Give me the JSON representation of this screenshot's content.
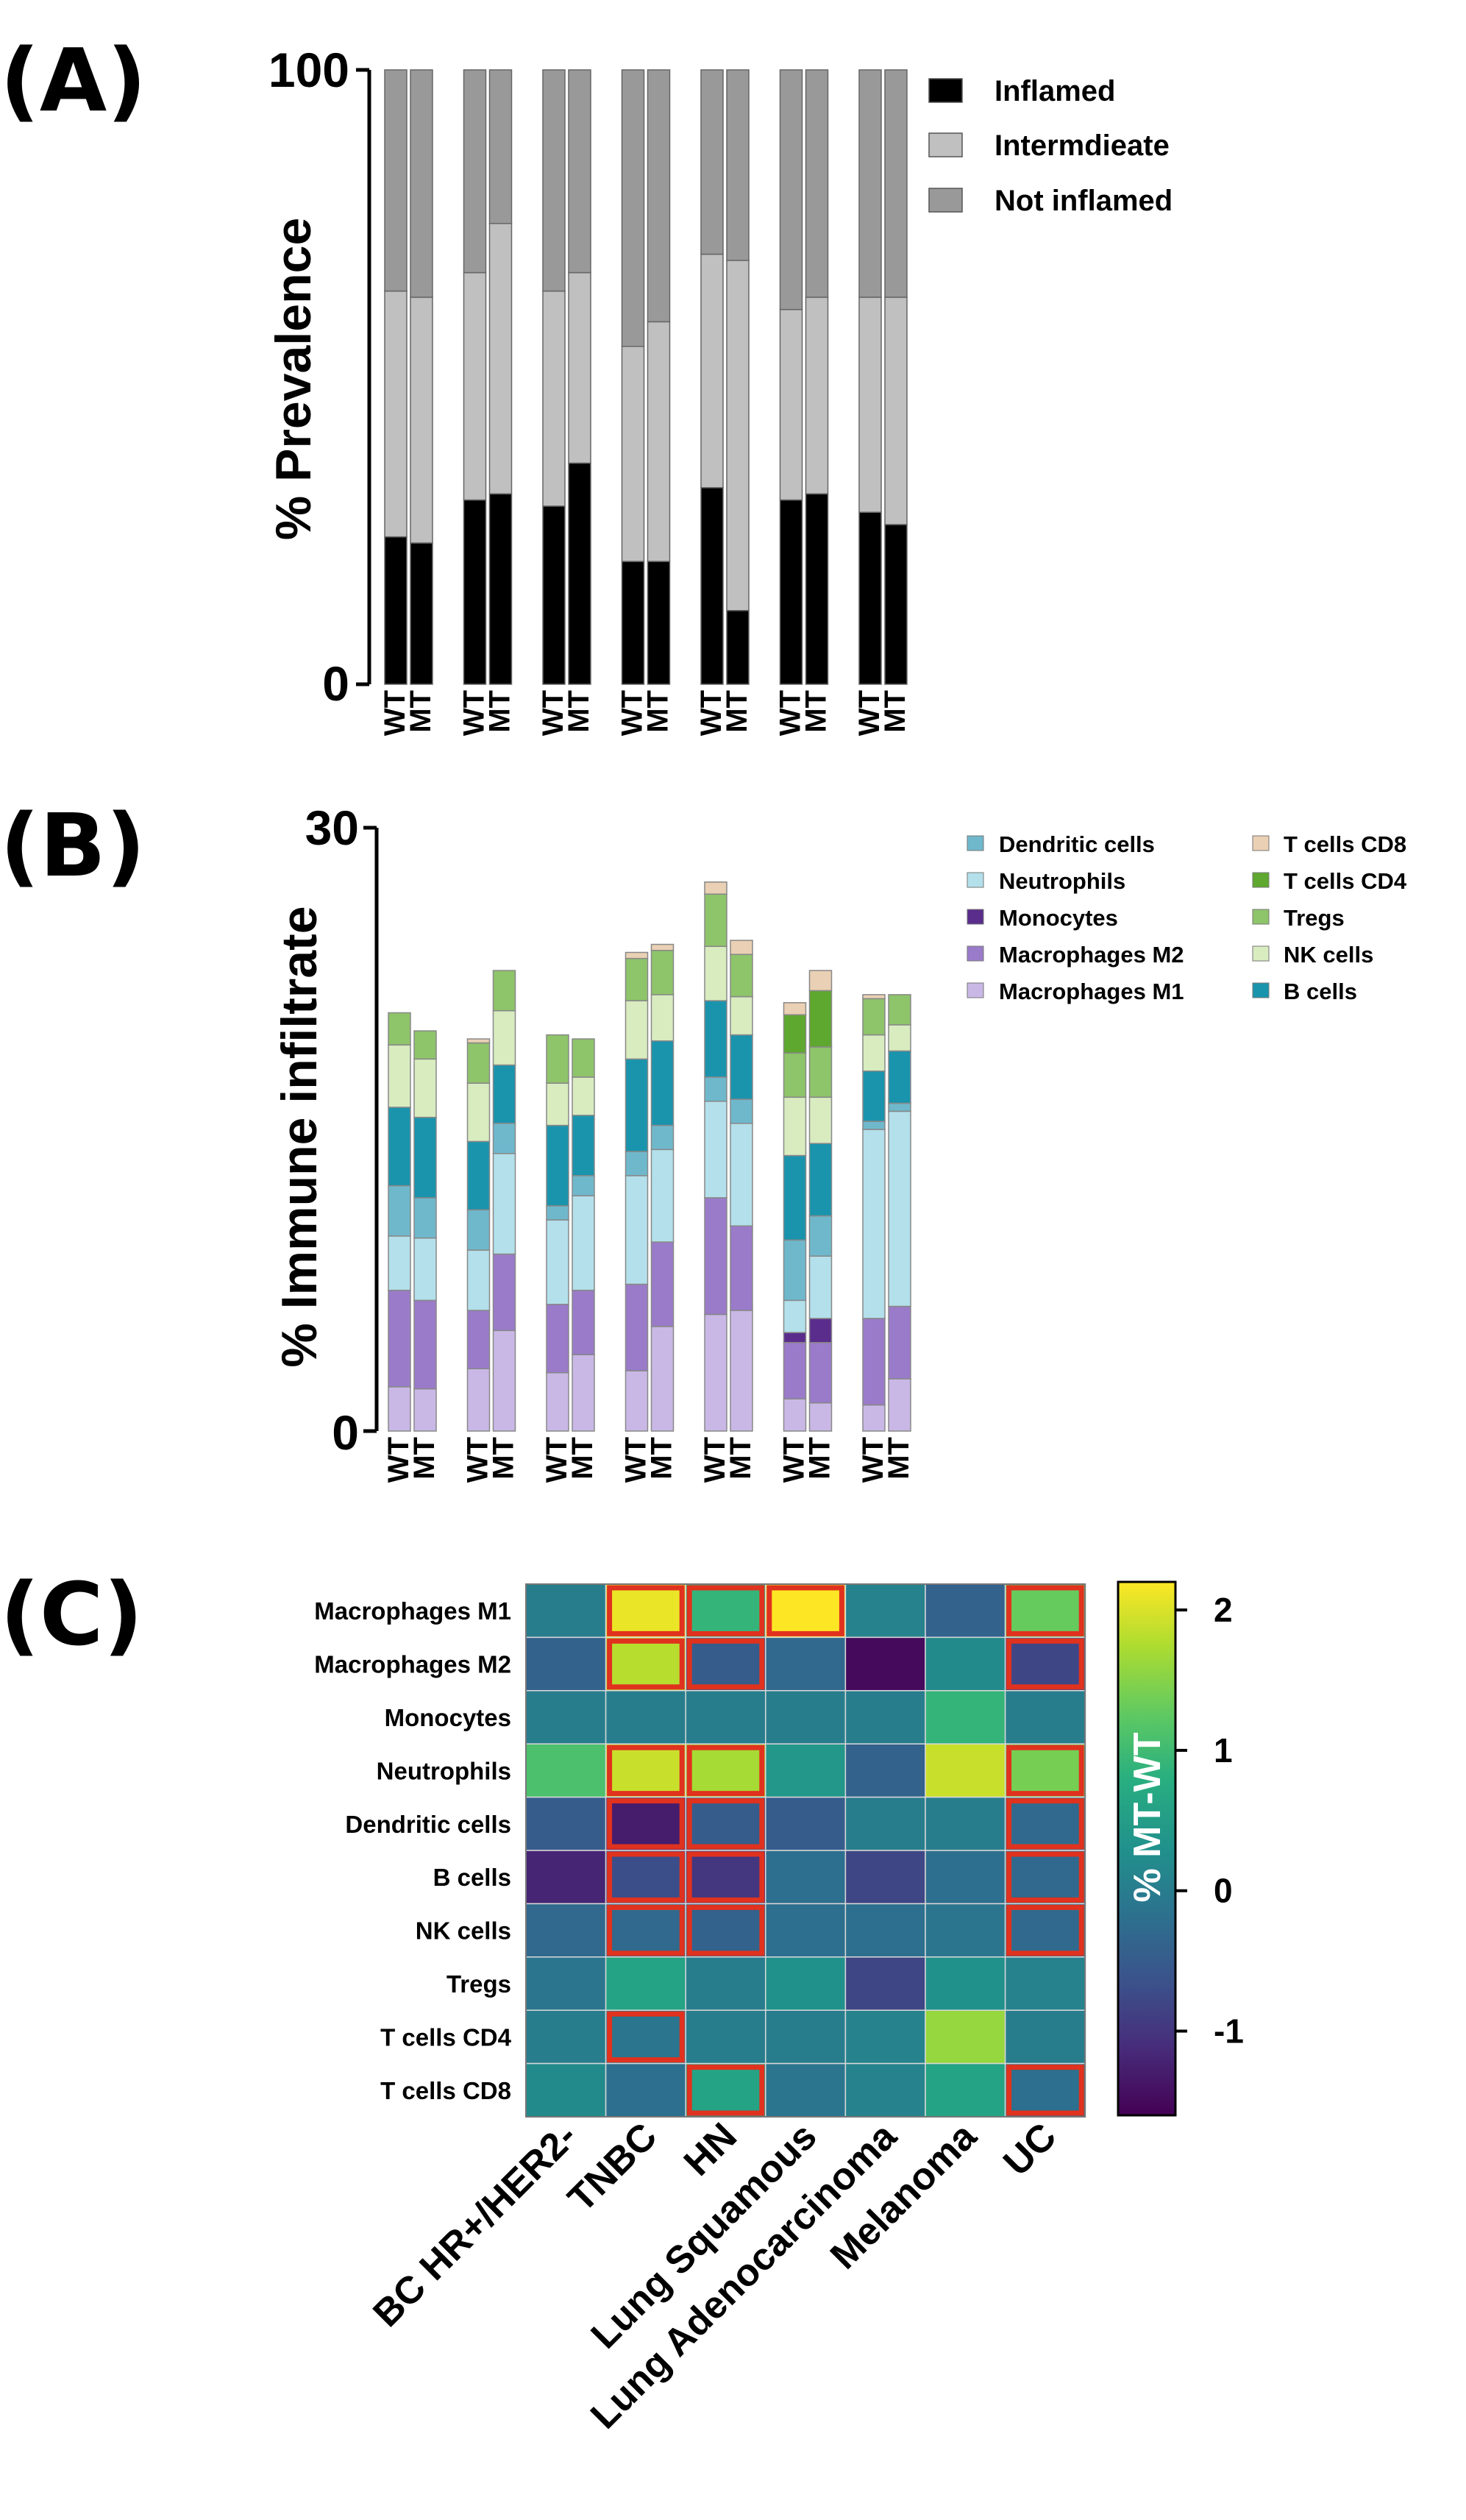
{
  "panels": {
    "a_label": "(A)",
    "b_label": "(B)",
    "c_label": "(C)"
  },
  "chart_data": [
    {
      "type": "bar",
      "stacked": true,
      "panel": "A",
      "ylabel": "% Prevalence",
      "ylim": [
        0,
        100
      ],
      "yticks": [
        "0",
        "100"
      ],
      "group_count": 7,
      "categories": [
        "WT",
        "MT",
        "WT",
        "MT",
        "WT",
        "MT",
        "WT",
        "MT",
        "WT",
        "MT",
        "WT",
        "MT",
        "WT",
        "MT"
      ],
      "series": [
        {
          "name": "Inflamed",
          "color": "#000000",
          "values": [
            24,
            23,
            30,
            31,
            29,
            36,
            20,
            20,
            32,
            12,
            30,
            31,
            28,
            26
          ]
        },
        {
          "name": "Intermdieate",
          "color": "#c0c0c0",
          "values": [
            40,
            40,
            37,
            44,
            35,
            31,
            35,
            39,
            38,
            57,
            31,
            32,
            35,
            37
          ]
        },
        {
          "name": "Not inflamed",
          "color": "#999999",
          "values": [
            36,
            37,
            33,
            25,
            36,
            33,
            45,
            41,
            30,
            31,
            39,
            37,
            37,
            37
          ]
        }
      ],
      "legend_position": "top-right",
      "grid": false
    },
    {
      "type": "bar",
      "stacked": true,
      "panel": "B",
      "ylabel": "% Immune infiltrate",
      "ylim": [
        0,
        30
      ],
      "yticks": [
        "0",
        "30"
      ],
      "group_count": 7,
      "categories": [
        "WT",
        "MT",
        "WT",
        "MT",
        "WT",
        "MT",
        "WT",
        "MT",
        "WT",
        "MT",
        "WT",
        "MT",
        "WT",
        "MT"
      ],
      "series": [
        {
          "name": "Macrophages M1",
          "color": "#c9b8e6",
          "values": [
            2.2,
            2.1,
            3.1,
            5.0,
            2.9,
            3.8,
            3.0,
            5.2,
            5.8,
            6.0,
            1.6,
            1.4,
            1.3,
            2.6
          ]
        },
        {
          "name": "Macrophages M2",
          "color": "#9a7bc9",
          "values": [
            4.8,
            4.4,
            2.9,
            3.8,
            3.4,
            3.2,
            4.3,
            4.2,
            5.8,
            4.2,
            2.8,
            3.0,
            4.3,
            3.6
          ]
        },
        {
          "name": "Monocytes",
          "color": "#5a2d8c",
          "values": [
            0.0,
            0.0,
            0.0,
            0.0,
            0.0,
            0.0,
            0.0,
            0.0,
            0.0,
            0.0,
            0.5,
            1.2,
            0.0,
            0.0
          ]
        },
        {
          "name": "Neutrophils",
          "color": "#b3e0ea",
          "values": [
            2.7,
            3.1,
            3.0,
            5.0,
            4.2,
            4.7,
            5.4,
            4.6,
            4.8,
            5.1,
            1.6,
            3.1,
            9.4,
            9.7
          ]
        },
        {
          "name": "Dendritic cells",
          "color": "#6fb8cc",
          "values": [
            2.5,
            2.0,
            2.0,
            1.5,
            0.7,
            1.0,
            1.2,
            1.2,
            1.2,
            1.2,
            3.0,
            2.0,
            0.4,
            0.4
          ]
        },
        {
          "name": "B cells",
          "color": "#1a94ad",
          "values": [
            3.9,
            4.0,
            3.4,
            2.9,
            4.0,
            3.0,
            4.6,
            4.2,
            3.8,
            3.2,
            4.2,
            3.6,
            2.5,
            2.6
          ]
        },
        {
          "name": "NK cells",
          "color": "#d8ecc0",
          "values": [
            3.1,
            2.9,
            2.9,
            2.7,
            2.1,
            1.9,
            2.9,
            2.3,
            2.7,
            1.9,
            2.9,
            2.3,
            1.8,
            1.3
          ]
        },
        {
          "name": "Tregs",
          "color": "#8ec46a",
          "values": [
            1.6,
            1.4,
            2.0,
            2.0,
            2.4,
            1.9,
            2.1,
            2.2,
            2.6,
            2.1,
            2.2,
            2.5,
            1.8,
            1.5
          ]
        },
        {
          "name": "T cells CD4",
          "color": "#5fa82f",
          "values": [
            0.0,
            0.0,
            0.0,
            0.0,
            0.0,
            0.0,
            0.0,
            0.0,
            0.0,
            0.0,
            1.9,
            2.8,
            0.0,
            0.0
          ]
        },
        {
          "name": "T cells CD8",
          "color": "#ead0b4",
          "values": [
            0.0,
            0.0,
            0.2,
            0.0,
            0.0,
            0.0,
            0.3,
            0.3,
            0.6,
            0.7,
            0.6,
            1.0,
            0.2,
            0.0
          ]
        }
      ],
      "legend_position": "right",
      "grid": false
    },
    {
      "type": "heatmap",
      "panel": "C",
      "rows": [
        "Macrophages M1",
        "Macrophages M2",
        "Monocytes",
        "Neutrophils",
        "Dendritic cells",
        "B cells",
        "NK cells",
        "Tregs",
        "T cells CD4",
        "T cells CD8"
      ],
      "columns": [
        "BC HR+/HER2-",
        "TNBC",
        "HN",
        "Lung Squamous",
        "Lung Adenocarcinoma",
        "Melanoma",
        "UC"
      ],
      "values": [
        [
          0.0,
          2.1,
          0.9,
          2.2,
          0.1,
          -0.4,
          1.3
        ],
        [
          -0.4,
          1.8,
          -0.5,
          -0.3,
          -1.5,
          0.2,
          -0.8
        ],
        [
          0.0,
          0.0,
          0.0,
          0.0,
          0.0,
          0.9,
          0.0
        ],
        [
          1.1,
          1.9,
          1.7,
          0.4,
          -0.4,
          1.9,
          1.4
        ],
        [
          -0.5,
          -1.3,
          -0.5,
          -0.5,
          0.0,
          0.0,
          -0.3
        ],
        [
          -1.2,
          -0.7,
          -1.0,
          -0.2,
          -0.8,
          -0.2,
          -0.3
        ],
        [
          -0.3,
          -0.3,
          -0.4,
          -0.2,
          -0.2,
          -0.1,
          -0.3
        ],
        [
          -0.1,
          0.6,
          0.0,
          0.3,
          -0.8,
          0.3,
          0.1
        ],
        [
          0.0,
          -0.1,
          0.0,
          0.0,
          0.1,
          1.6,
          0.0
        ],
        [
          0.2,
          -0.2,
          0.6,
          -0.1,
          0.1,
          0.6,
          -0.2
        ]
      ],
      "highlighted_cells": [
        [
          0,
          1
        ],
        [
          0,
          2
        ],
        [
          0,
          3
        ],
        [
          0,
          6
        ],
        [
          1,
          1
        ],
        [
          1,
          2
        ],
        [
          1,
          6
        ],
        [
          3,
          1
        ],
        [
          3,
          2
        ],
        [
          3,
          6
        ],
        [
          4,
          1
        ],
        [
          4,
          2
        ],
        [
          4,
          6
        ],
        [
          5,
          1
        ],
        [
          5,
          2
        ],
        [
          5,
          6
        ],
        [
          6,
          1
        ],
        [
          6,
          2
        ],
        [
          6,
          6
        ],
        [
          8,
          1
        ],
        [
          9,
          2
        ],
        [
          9,
          6
        ]
      ],
      "colorbar": {
        "title": "% MT-WT",
        "min": -1.6,
        "max": 2.2,
        "ticks": [
          2,
          1,
          0,
          -1
        ],
        "tick_labels": [
          "2",
          "1",
          "0",
          "-1"
        ]
      }
    }
  ]
}
